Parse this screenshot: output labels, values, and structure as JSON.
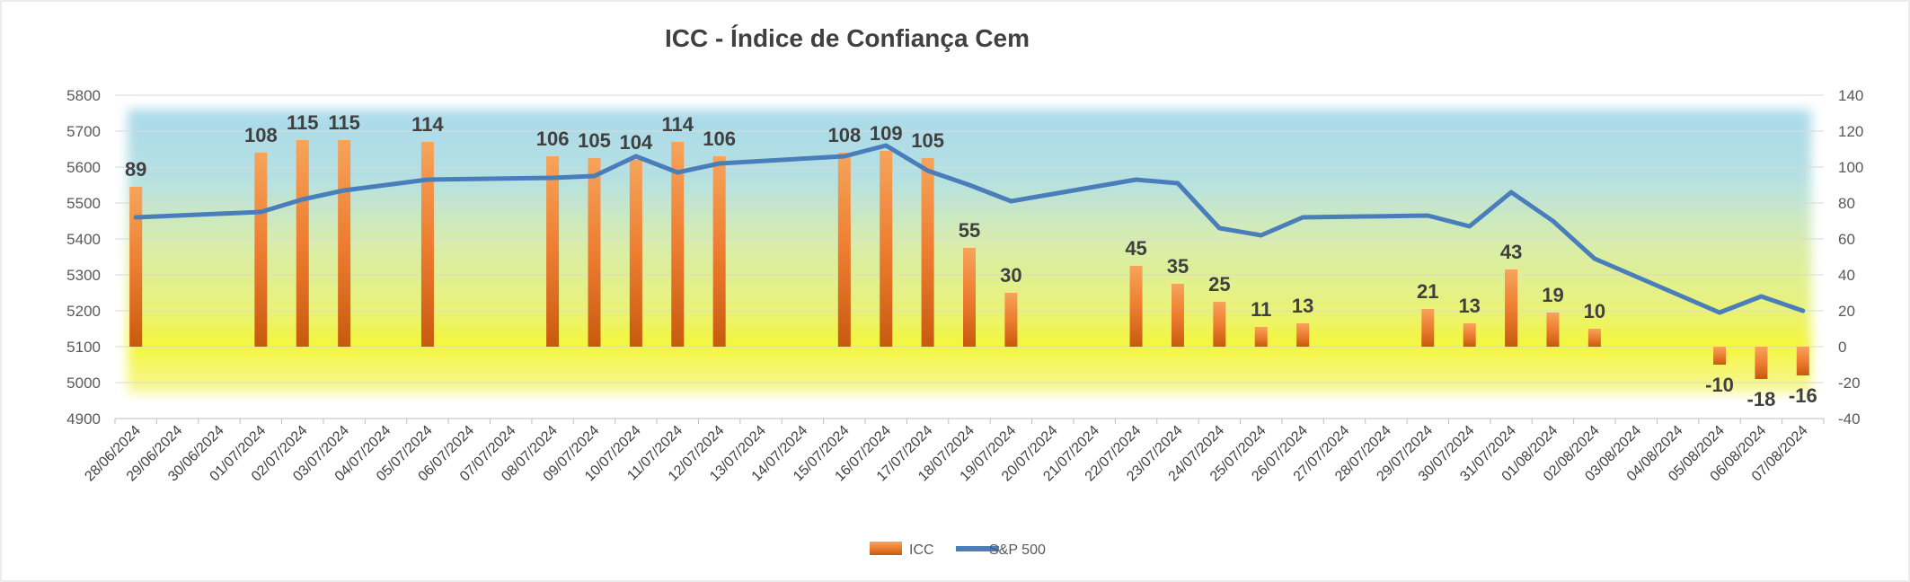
{
  "chart_data": {
    "type": "bar",
    "title": "ICC - Índice de Confiança Cem",
    "xlabel": "",
    "ylabel": "",
    "categories": [
      "28/06/2024",
      "29/06/2024",
      "30/06/2024",
      "01/07/2024",
      "02/07/2024",
      "03/07/2024",
      "04/07/2024",
      "05/07/2024",
      "06/07/2024",
      "07/07/2024",
      "08/07/2024",
      "09/07/2024",
      "10/07/2024",
      "11/07/2024",
      "12/07/2024",
      "13/07/2024",
      "14/07/2024",
      "15/07/2024",
      "16/07/2024",
      "17/07/2024",
      "18/07/2024",
      "19/07/2024",
      "20/07/2024",
      "21/07/2024",
      "22/07/2024",
      "23/07/2024",
      "24/07/2024",
      "25/07/2024",
      "26/07/2024",
      "27/07/2024",
      "28/07/2024",
      "29/07/2024",
      "30/07/2024",
      "31/07/2024",
      "01/08/2024",
      "02/08/2024",
      "03/08/2024",
      "04/08/2024",
      "05/08/2024",
      "06/08/2024",
      "07/08/2024"
    ],
    "y_left_lim": [
      4900,
      5800
    ],
    "y_left_ticks": [
      4900,
      5000,
      5100,
      5200,
      5300,
      5400,
      5500,
      5600,
      5700,
      5800
    ],
    "y_right_lim": [
      -40,
      140
    ],
    "y_right_ticks": [
      -40,
      -20,
      0,
      20,
      40,
      60,
      80,
      100,
      120,
      140
    ],
    "series": [
      {
        "name": "ICC",
        "type": "bar",
        "axis": "right",
        "color": "#ed7d31",
        "values": [
          89,
          null,
          null,
          108,
          115,
          115,
          null,
          114,
          null,
          null,
          106,
          105,
          104,
          114,
          106,
          null,
          null,
          108,
          109,
          105,
          55,
          30,
          null,
          null,
          45,
          35,
          25,
          11,
          13,
          null,
          null,
          21,
          13,
          43,
          19,
          10,
          null,
          null,
          -10,
          -18,
          -16
        ]
      },
      {
        "name": "S&P 500",
        "type": "line",
        "axis": "left",
        "color": "#4a7ebb",
        "values": [
          5460,
          null,
          null,
          5475,
          5510,
          5535,
          5550,
          5565,
          null,
          null,
          5570,
          5575,
          5630,
          5585,
          5610,
          null,
          null,
          5630,
          5660,
          5590,
          5550,
          5505,
          5525,
          5545,
          5565,
          5555,
          5430,
          5410,
          5460,
          null,
          null,
          5465,
          5435,
          5530,
          5450,
          5345,
          null,
          null,
          5195,
          5240,
          5200
        ]
      }
    ],
    "legend": [
      "ICC",
      "S&P 500"
    ],
    "legend_position": "bottom",
    "grid": true
  }
}
